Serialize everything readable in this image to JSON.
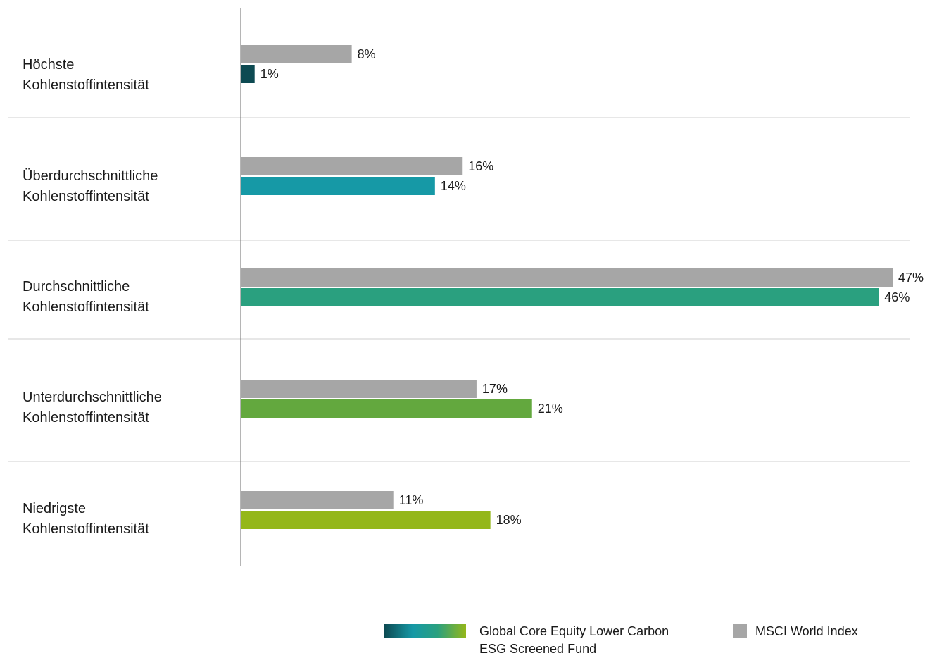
{
  "chart_data": {
    "type": "bar",
    "orientation": "horizontal",
    "categories": [
      [
        "Höchste",
        "Kohlenstoffintensität"
      ],
      [
        "Überdurchschnittliche",
        "Kohlenstoffintensität"
      ],
      [
        "Durchschnittliche",
        "Kohlenstoffintensität"
      ],
      [
        "Unterdurchschnittliche",
        "Kohlenstoffintensität"
      ],
      [
        "Niedrigste",
        "Kohlenstoffintensität"
      ]
    ],
    "series": [
      {
        "name": "MSCI World Index",
        "values": [
          8,
          16,
          47,
          17,
          11
        ],
        "labels": [
          "8%",
          "16%",
          "47%",
          "17%",
          "11%"
        ],
        "color": "#a6a6a6"
      },
      {
        "name": "Global Core Equity Lower Carbon ESG Screened Fund",
        "values": [
          1,
          14,
          46,
          21,
          18
        ],
        "labels": [
          "1%",
          "14%",
          "46%",
          "21%",
          "18%"
        ],
        "colors": [
          "#0d4a52",
          "#1699a6",
          "#2aa07f",
          "#63a83e",
          "#94b71a"
        ]
      }
    ],
    "xlim": [
      0,
      47
    ],
    "grid": false,
    "legend_position": "bottom-right"
  },
  "legend": {
    "fund_label": "Global Core Equity Lower Carbon\nESG Screened Fund",
    "index_label": "MSCI World Index",
    "fund_gradient": [
      "#0d4a52",
      "#1699a6",
      "#2aa07f",
      "#94b71a"
    ],
    "index_color": "#a6a6a6"
  }
}
